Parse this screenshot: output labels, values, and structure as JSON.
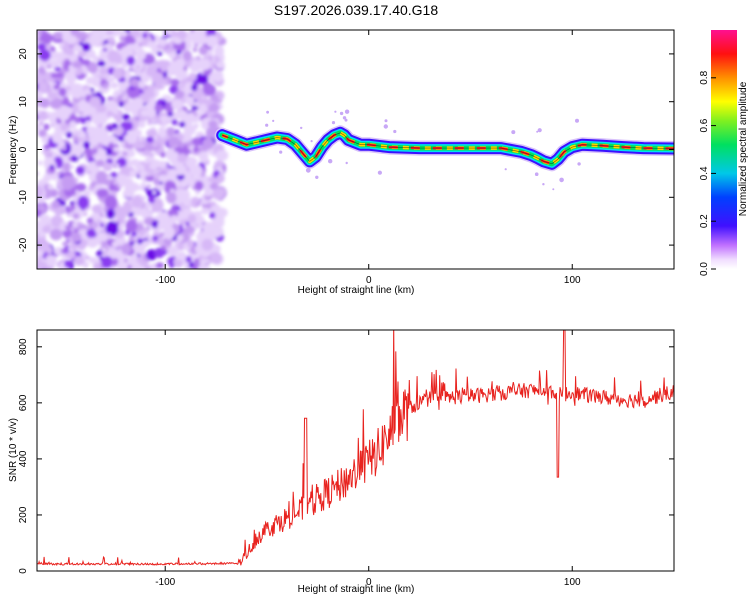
{
  "title": "S197.2026.039.17.40.G18",
  "chart_data": [
    {
      "type": "heatmap",
      "xlabel": "Height of straight line (km)",
      "ylabel": "Frequency (Hz)",
      "xlim": [
        -163,
        150
      ],
      "ylim": [
        -25,
        25
      ],
      "xticks": [
        -100,
        0,
        100
      ],
      "yticks": [
        -20,
        -10,
        0,
        10,
        20
      ],
      "noise_region_x": [
        -163,
        -72
      ],
      "ridge": {
        "x": [
          -72,
          -66,
          -60,
          -55,
          -50,
          -45,
          -40,
          -36,
          -32,
          -29,
          -26,
          -23,
          -20,
          -17,
          -14,
          -12,
          -10,
          -7,
          -4,
          0,
          10,
          25,
          45,
          65,
          75,
          80,
          83,
          86,
          90,
          93,
          96,
          100,
          105,
          115,
          125,
          135,
          150
        ],
        "y": [
          3,
          2,
          1,
          1.5,
          2,
          2.5,
          2.2,
          1,
          -1,
          -2.5,
          -1.5,
          0.5,
          2,
          3,
          3.5,
          3,
          2,
          1.5,
          1,
          1,
          0.5,
          0.3,
          0.3,
          0.3,
          -0.5,
          -1.2,
          -1.8,
          -2.5,
          -3,
          -2,
          -0.5,
          0.5,
          1,
          0.8,
          0.5,
          0.3,
          0.2
        ]
      },
      "colorbar": {
        "label": "Normalized spectral amplitude",
        "range": [
          0,
          1
        ],
        "ticks": [
          "0.0",
          "0.2",
          "0.4",
          "0.6",
          "0.8"
        ],
        "tick_values": [
          0,
          0.2,
          0.4,
          0.6,
          0.8
        ]
      }
    },
    {
      "type": "line",
      "xlabel": "Height of straight line (km)",
      "ylabel": "SNR (10 * v/v)",
      "xlim": [
        -163,
        150
      ],
      "ylim": [
        0,
        860
      ],
      "xticks": [
        -100,
        0,
        100
      ],
      "yticks": [
        0,
        200,
        400,
        600,
        800
      ],
      "series": [
        {
          "name": "SNR",
          "color": "#e8231f",
          "envelope_x": [
            -163,
            -100,
            -64,
            -60,
            -55,
            -50,
            -45,
            -40,
            -35,
            -30,
            -25,
            -20,
            -15,
            -10,
            -5,
            0,
            5,
            10,
            15,
            20,
            25,
            30,
            40,
            50,
            60,
            70,
            80,
            90,
            95,
            100,
            110,
            120,
            130,
            140,
            150
          ],
          "envelope_y": [
            25,
            25,
            27,
            60,
            120,
            150,
            170,
            190,
            210,
            230,
            260,
            280,
            300,
            330,
            360,
            390,
            430,
            490,
            540,
            580,
            600,
            615,
            620,
            625,
            630,
            640,
            645,
            640,
            630,
            635,
            625,
            615,
            610,
            620,
            640
          ]
        }
      ]
    }
  ]
}
